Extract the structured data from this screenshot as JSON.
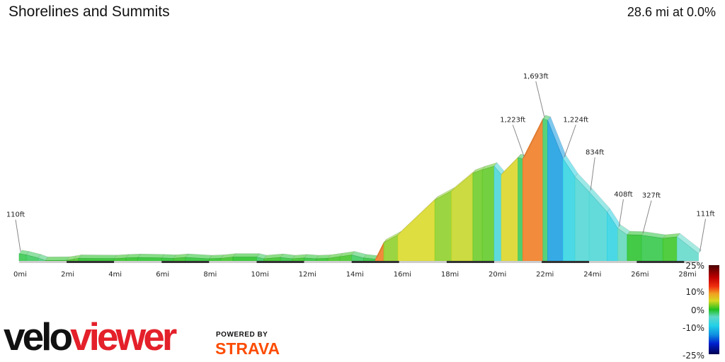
{
  "header": {
    "title": "Shorelines and Summits",
    "summary": "28.6 mi at 0.0%"
  },
  "branding": {
    "logo_part1": "velo",
    "logo_part2": "viewer",
    "powered_by": "POWERED BY",
    "strava": "STRAVA",
    "strava_color": "#fc4c02",
    "logo_accent": "#e4202a"
  },
  "chart_data": {
    "type": "area",
    "xlabel": "",
    "ylabel": "",
    "x_unit": "mi",
    "y_unit": "ft",
    "xlim": [
      0,
      28.6
    ],
    "x_ticks": [
      "0mi",
      "2mi",
      "4mi",
      "6mi",
      "8mi",
      "10mi",
      "12mi",
      "14mi",
      "16mi",
      "18mi",
      "20mi",
      "22mi",
      "24mi",
      "26mi",
      "28mi"
    ],
    "profile": [
      [
        0,
        110
      ],
      [
        0.3,
        95
      ],
      [
        0.8,
        60
      ],
      [
        1.1,
        30
      ],
      [
        2,
        32
      ],
      [
        2.3,
        45
      ],
      [
        2.5,
        55
      ],
      [
        4,
        52
      ],
      [
        4.5,
        60
      ],
      [
        5,
        65
      ],
      [
        6,
        60
      ],
      [
        6.5,
        55
      ],
      [
        7,
        66
      ],
      [
        8,
        50
      ],
      [
        8.5,
        55
      ],
      [
        9,
        70
      ],
      [
        10,
        70
      ],
      [
        10.3,
        50
      ],
      [
        11,
        66
      ],
      [
        11.5,
        50
      ],
      [
        12,
        60
      ],
      [
        12.5,
        50
      ],
      [
        13,
        55
      ],
      [
        13.5,
        75
      ],
      [
        14,
        95
      ],
      [
        14.5,
        60
      ],
      [
        15,
        45
      ],
      [
        15.35,
        240
      ],
      [
        15.95,
        330
      ],
      [
        17.5,
        740
      ],
      [
        18.2,
        845
      ],
      [
        19.1,
        1054
      ],
      [
        19.5,
        1095
      ],
      [
        20,
        1137
      ],
      [
        20.3,
        1037
      ],
      [
        21,
        1236
      ],
      [
        21.2,
        1223
      ],
      [
        22.05,
        1693
      ],
      [
        22.25,
        1676
      ],
      [
        22.9,
        1224
      ],
      [
        23.4,
        1012
      ],
      [
        24,
        834
      ],
      [
        24.75,
        600
      ],
      [
        25.2,
        408
      ],
      [
        25.6,
        332
      ],
      [
        26.2,
        327
      ],
      [
        27.1,
        290
      ],
      [
        27.7,
        307
      ],
      [
        28.6,
        111
      ]
    ],
    "annotations": [
      {
        "mi": 0,
        "ft": 110,
        "text": "110ft"
      },
      {
        "mi": 21.2,
        "ft": 1223,
        "text": "1,223ft"
      },
      {
        "mi": 22.05,
        "ft": 1693,
        "text": "1,693ft"
      },
      {
        "mi": 22.9,
        "ft": 1224,
        "text": "1,224ft"
      },
      {
        "mi": 24,
        "ft": 834,
        "text": "834ft"
      },
      {
        "mi": 25.2,
        "ft": 408,
        "text": "408ft"
      },
      {
        "mi": 26.2,
        "ft": 327,
        "text": "327ft"
      },
      {
        "mi": 28.6,
        "ft": 111,
        "text": "111ft"
      }
    ],
    "color_legend": {
      "labels": [
        "25%",
        "10%",
        "0%",
        "-10%",
        "-25%"
      ],
      "stops": [
        [
          25,
          "#4a0000"
        ],
        [
          18,
          "#c00000"
        ],
        [
          13,
          "#f03010"
        ],
        [
          9,
          "#f0a020"
        ],
        [
          5,
          "#d8d820"
        ],
        [
          0,
          "#20c020"
        ],
        [
          -4,
          "#60d8c8"
        ],
        [
          -9,
          "#20d0e8"
        ],
        [
          -14,
          "#1090e0"
        ],
        [
          -19,
          "#0020d0"
        ],
        [
          -25,
          "#000050"
        ]
      ]
    }
  }
}
